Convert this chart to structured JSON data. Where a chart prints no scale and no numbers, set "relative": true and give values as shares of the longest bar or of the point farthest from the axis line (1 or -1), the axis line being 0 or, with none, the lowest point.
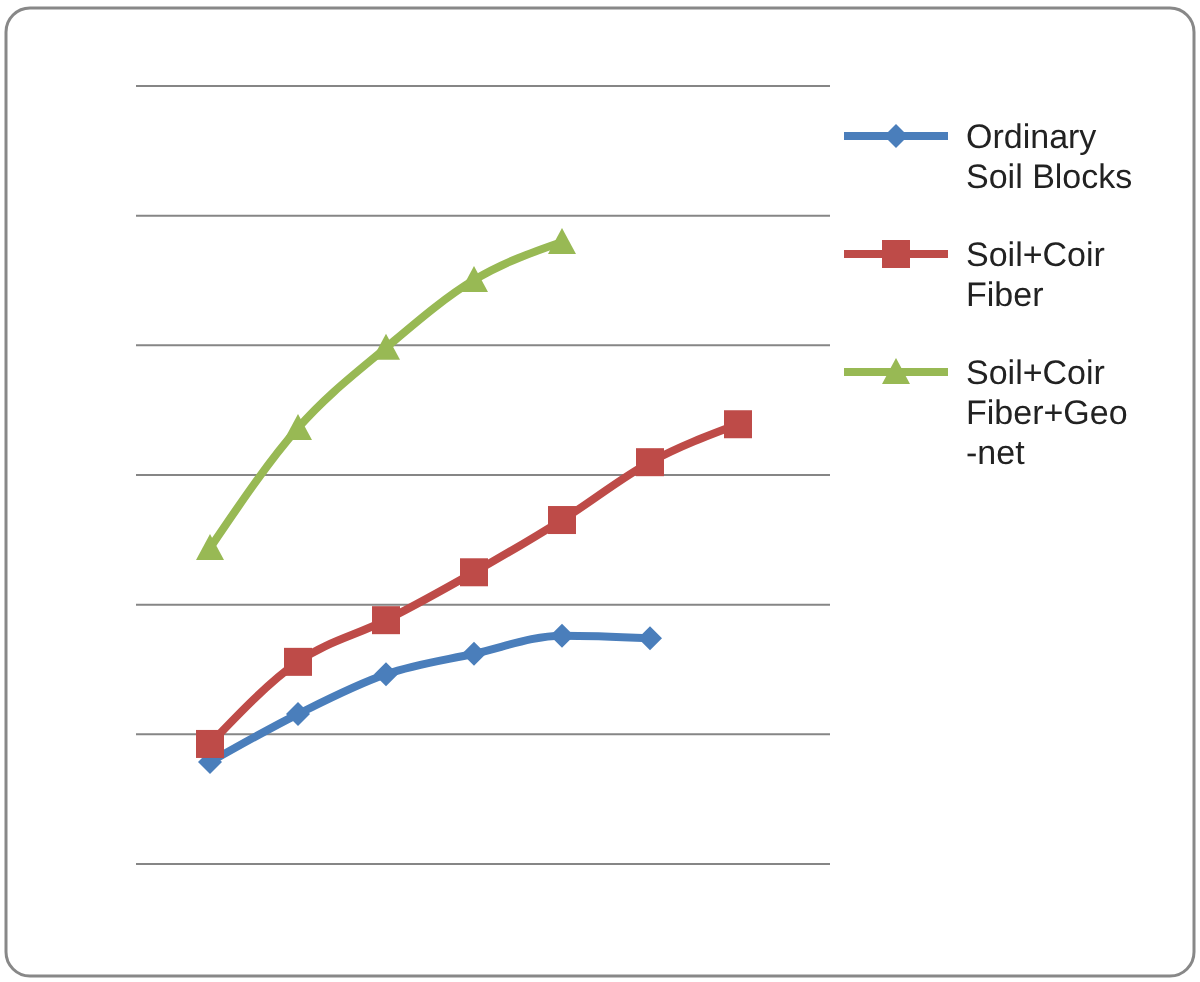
{
  "chart_data": {
    "type": "line",
    "relative": true,
    "categories": [
      null,
      null,
      null,
      null,
      null,
      null,
      null
    ],
    "series": [
      {
        "name": "Ordinary Soil Blocks",
        "color": "#4a7ebb",
        "marker": "diamond",
        "values": [
          0.164,
          0.241,
          0.305,
          0.338,
          0.367,
          0.363,
          null
        ]
      },
      {
        "name": "Soil+Coir Fiber",
        "color": "#be4b48",
        "marker": "square",
        "values": [
          0.193,
          0.325,
          0.392,
          0.469,
          0.553,
          0.646,
          0.707
        ]
      },
      {
        "name": "Soil+Coir Fiber+Geo-net",
        "color": "#98b954",
        "marker": "triangle",
        "values": [
          0.508,
          0.701,
          0.83,
          0.939,
          1,
          null,
          null
        ]
      }
    ],
    "grid": "y",
    "legend": "right"
  }
}
